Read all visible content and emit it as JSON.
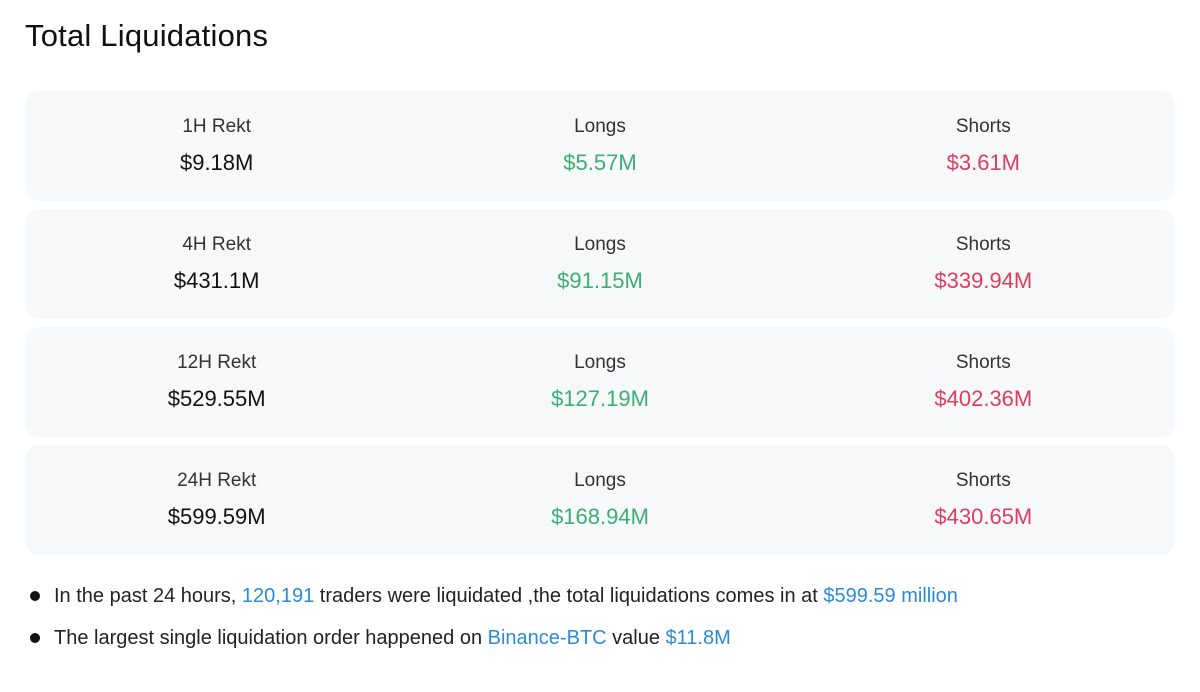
{
  "title": "Total Liquidations",
  "colors": {
    "longs": "#3cae74",
    "shorts": "#d9405e",
    "link": "#2b8ad8",
    "card_bg": "#f7f8fa"
  },
  "rows": [
    {
      "period_label": "1H Rekt",
      "total": "$9.18M",
      "longs_label": "Longs",
      "longs": "$5.57M",
      "shorts_label": "Shorts",
      "shorts": "$3.61M"
    },
    {
      "period_label": "4H Rekt",
      "total": "$431.1M",
      "longs_label": "Longs",
      "longs": "$91.15M",
      "shorts_label": "Shorts",
      "shorts": "$339.94M"
    },
    {
      "period_label": "12H Rekt",
      "total": "$529.55M",
      "longs_label": "Longs",
      "longs": "$127.19M",
      "shorts_label": "Shorts",
      "shorts": "$402.36M"
    },
    {
      "period_label": "24H Rekt",
      "total": "$599.59M",
      "longs_label": "Longs",
      "longs": "$168.94M",
      "shorts_label": "Shorts",
      "shorts": "$430.65M"
    }
  ],
  "notes": {
    "summary": {
      "text1": "In the past 24 hours, ",
      "traders": "120,191",
      "text2": " traders were liquidated ,the total liquidations comes in at ",
      "total": "$599.59 million"
    },
    "largest": {
      "text1": "The largest single liquidation order happened on ",
      "pair": "Binance-BTC",
      "text2": " value ",
      "value": "$11.8M"
    }
  }
}
